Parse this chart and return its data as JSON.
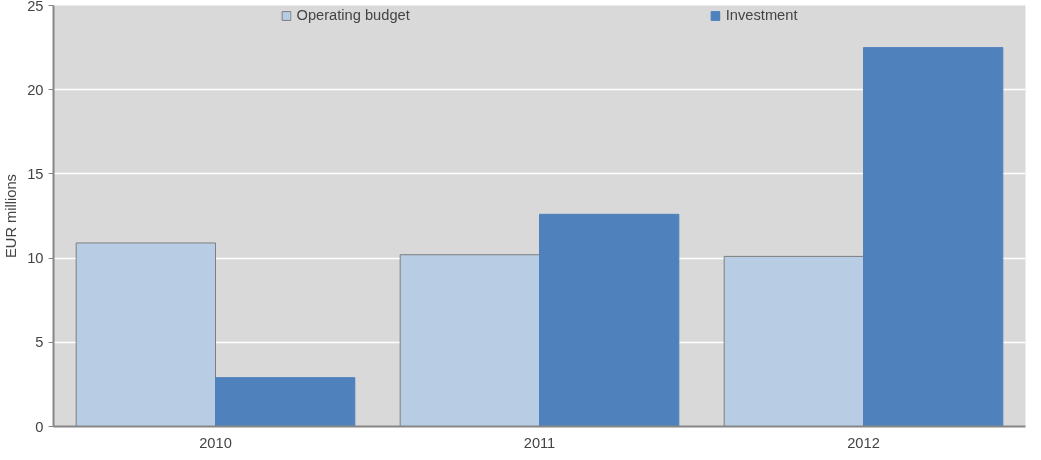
{
  "chart_data": {
    "type": "bar",
    "ylabel": "EUR millions",
    "categories": [
      "2010",
      "2011",
      "2012"
    ],
    "series": [
      {
        "name": "Operating budget",
        "color": "#b8cce4",
        "values": [
          10.9,
          10.2,
          10.1
        ]
      },
      {
        "name": "Investment",
        "color": "#4f81bd",
        "values": [
          2.9,
          12.6,
          22.5
        ]
      }
    ],
    "ylim": [
      0,
      25
    ],
    "yticks": [
      0,
      5,
      10,
      15,
      20,
      25
    ],
    "grid": "y",
    "legend": "top"
  }
}
